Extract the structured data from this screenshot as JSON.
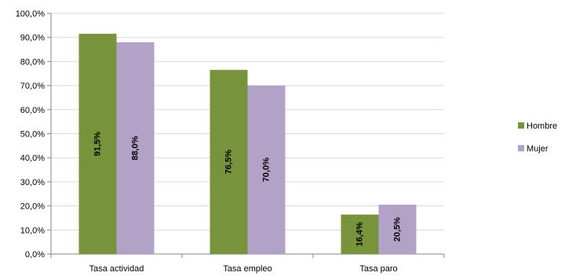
{
  "chart_data": {
    "type": "bar",
    "categories": [
      "Tasa actividad",
      "Tasa empleo",
      "Tasa paro"
    ],
    "series": [
      {
        "name": "Hombre",
        "values": [
          91.5,
          76.5,
          16.4
        ],
        "labels": [
          "91,5%",
          "76,5%",
          "16,4%"
        ],
        "color": "#77933C"
      },
      {
        "name": "Mujer",
        "values": [
          88.0,
          70.0,
          20.5
        ],
        "labels": [
          "88,0%",
          "70,0%",
          "20,5%"
        ],
        "color": "#B3A2C7"
      }
    ],
    "ylim": [
      0,
      100
    ],
    "y_ticks": [
      "0,0%",
      "10,0%",
      "20,0%",
      "30,0%",
      "40,0%",
      "50,0%",
      "60,0%",
      "70,0%",
      "80,0%",
      "90,0%",
      "100,0%"
    ],
    "grid": true,
    "grid_color": "#D9D9D9",
    "legend_position": "right"
  }
}
